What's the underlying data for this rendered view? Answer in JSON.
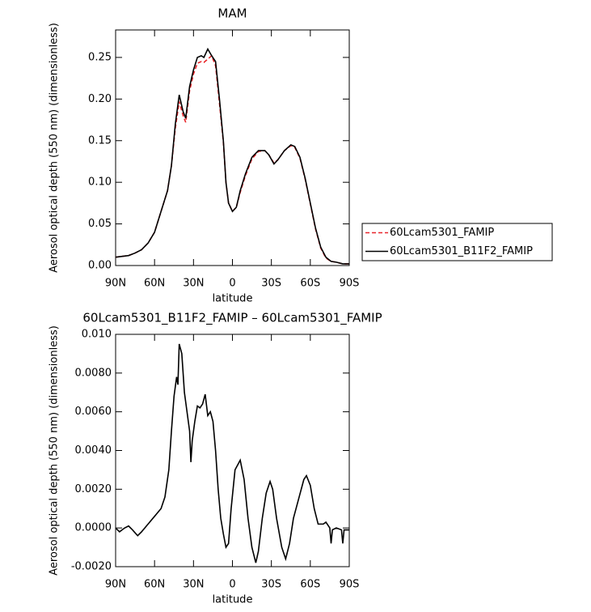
{
  "chart_data": [
    {
      "type": "line",
      "title": "MAM",
      "x_label": "latitude",
      "y_label": "Aerosol optical depth (550 nm) (dimensionless)",
      "x": [
        90,
        85,
        80,
        75,
        70,
        65,
        60,
        55,
        50,
        47,
        44,
        41,
        38,
        36,
        33,
        30,
        27,
        24,
        22,
        19,
        16,
        13,
        10,
        7,
        5,
        3,
        0,
        -3,
        -6,
        -10,
        -15,
        -20,
        -25,
        -28,
        -32,
        -35,
        -40,
        -45,
        -48,
        -52,
        -56,
        -60,
        -64,
        -68,
        -72,
        -76,
        -80,
        -85,
        -90
      ],
      "series": [
        {
          "name": "60Lcam5301_FAMIP",
          "color": "#e8262b",
          "dashed": true,
          "values": [
            0.01,
            0.011,
            0.012,
            0.015,
            0.019,
            0.027,
            0.04,
            0.065,
            0.09,
            0.12,
            0.165,
            0.197,
            0.18,
            0.172,
            0.21,
            0.23,
            0.243,
            0.245,
            0.244,
            0.248,
            0.252,
            0.24,
            0.195,
            0.148,
            0.1,
            0.075,
            0.065,
            0.07,
            0.088,
            0.108,
            0.128,
            0.137,
            0.138,
            0.133,
            0.123,
            0.127,
            0.138,
            0.144,
            0.142,
            0.129,
            0.104,
            0.074,
            0.044,
            0.021,
            0.009,
            0.005,
            0.004,
            0.002,
            0.002
          ]
        },
        {
          "name": "60Lcam5301_B11F2_FAMIP",
          "color": "#000000",
          "dashed": false,
          "values": [
            0.01,
            0.011,
            0.012,
            0.015,
            0.019,
            0.027,
            0.04,
            0.065,
            0.09,
            0.12,
            0.17,
            0.205,
            0.185,
            0.177,
            0.215,
            0.235,
            0.25,
            0.252,
            0.25,
            0.26,
            0.252,
            0.245,
            0.2,
            0.15,
            0.1,
            0.075,
            0.065,
            0.07,
            0.09,
            0.11,
            0.13,
            0.138,
            0.138,
            0.133,
            0.122,
            0.127,
            0.138,
            0.145,
            0.143,
            0.13,
            0.105,
            0.075,
            0.045,
            0.022,
            0.01,
            0.005,
            0.004,
            0.002,
            0.002
          ]
        }
      ],
      "xlim": [
        90,
        -90
      ],
      "xticks": [
        {
          "value": 90,
          "label": "90N"
        },
        {
          "value": 60,
          "label": "60N"
        },
        {
          "value": 30,
          "label": "30N"
        },
        0,
        {
          "value": -30,
          "label": "30S"
        },
        {
          "value": -60,
          "label": "60S"
        },
        {
          "value": -90,
          "label": "90S"
        }
      ],
      "ylim": [
        0,
        0.283
      ],
      "yticks": [
        {
          "value": 0,
          "label": "0.00"
        },
        {
          "value": 0.05,
          "label": "0.05"
        },
        {
          "value": 0.1,
          "label": "0.10"
        },
        {
          "value": 0.15,
          "label": "0.15"
        },
        {
          "value": 0.2,
          "label": "0.20"
        },
        {
          "value": 0.25,
          "label": "0.25"
        }
      ]
    },
    {
      "type": "line",
      "title": "60Lcam5301_B11F2_FAMIP – 60Lcam5301_FAMIP",
      "x_label": "latitude",
      "y_label": "Aerosol optical depth (550 nm) (dimensionless)",
      "x": [
        90,
        87,
        83,
        80,
        77,
        73,
        70,
        65,
        60,
        55,
        52,
        49,
        47,
        45,
        43,
        42,
        41,
        39,
        37,
        35,
        33,
        32,
        31,
        29,
        27,
        25,
        23,
        21,
        19,
        17,
        15,
        13,
        11,
        9,
        7,
        5,
        3,
        1,
        -2,
        -6,
        -9,
        -12,
        -15,
        -18,
        -20,
        -23,
        -26,
        -29,
        -31,
        -34,
        -38,
        -41,
        -44,
        -47,
        -51,
        -55,
        -57,
        -60,
        -63,
        -66,
        -70,
        -72,
        -75,
        -76,
        -77,
        -80,
        -84,
        -85,
        -86,
        -90
      ],
      "series": [
        {
          "name": "60Lcam5301_B11F2_FAMIP – 60Lcam5301_FAMIP",
          "color": "#000000",
          "dashed": false,
          "values": [
            0.0,
            -0.0002,
            0.0,
            0.0001,
            -0.0001,
            -0.0004,
            -0.0002,
            0.0002,
            0.0006,
            0.001,
            0.0016,
            0.003,
            0.005,
            0.0068,
            0.0078,
            0.0074,
            0.0095,
            0.009,
            0.007,
            0.006,
            0.005,
            0.0034,
            0.0045,
            0.0055,
            0.0063,
            0.0062,
            0.0064,
            0.0069,
            0.0058,
            0.006,
            0.0055,
            0.004,
            0.002,
            0.0005,
            -0.0003,
            -0.001,
            -0.0008,
            0.001,
            0.003,
            0.0035,
            0.0025,
            0.0005,
            -0.001,
            -0.0018,
            -0.0012,
            0.0005,
            0.0018,
            0.0024,
            0.002,
            0.0005,
            -0.001,
            -0.0016,
            -0.0008,
            0.0005,
            0.0015,
            0.0025,
            0.0027,
            0.0022,
            0.001,
            0.0002,
            0.0002,
            0.0003,
            0.0,
            -0.0008,
            -0.0001,
            0.0,
            -0.0001,
            -0.0008,
            -0.0001,
            -0.0001
          ]
        }
      ],
      "xlim": [
        90,
        -90
      ],
      "xticks": [
        {
          "value": 90,
          "label": "90N"
        },
        {
          "value": 60,
          "label": "60N"
        },
        {
          "value": 30,
          "label": "30N"
        },
        0,
        {
          "value": -30,
          "label": "30S"
        },
        {
          "value": -60,
          "label": "60S"
        },
        {
          "value": -90,
          "label": "90S"
        }
      ],
      "ylim": [
        -0.002,
        0.01
      ],
      "yticks": [
        {
          "value": -0.002,
          "label": "-0.0020"
        },
        {
          "value": 0,
          "label": "0.0000"
        },
        {
          "value": 0.002,
          "label": "0.0020"
        },
        {
          "value": 0.004,
          "label": "0.0040"
        },
        {
          "value": 0.006,
          "label": "0.0060"
        },
        {
          "value": 0.008,
          "label": "0.0080"
        },
        {
          "value": 0.01,
          "label": "0.010"
        }
      ]
    }
  ]
}
